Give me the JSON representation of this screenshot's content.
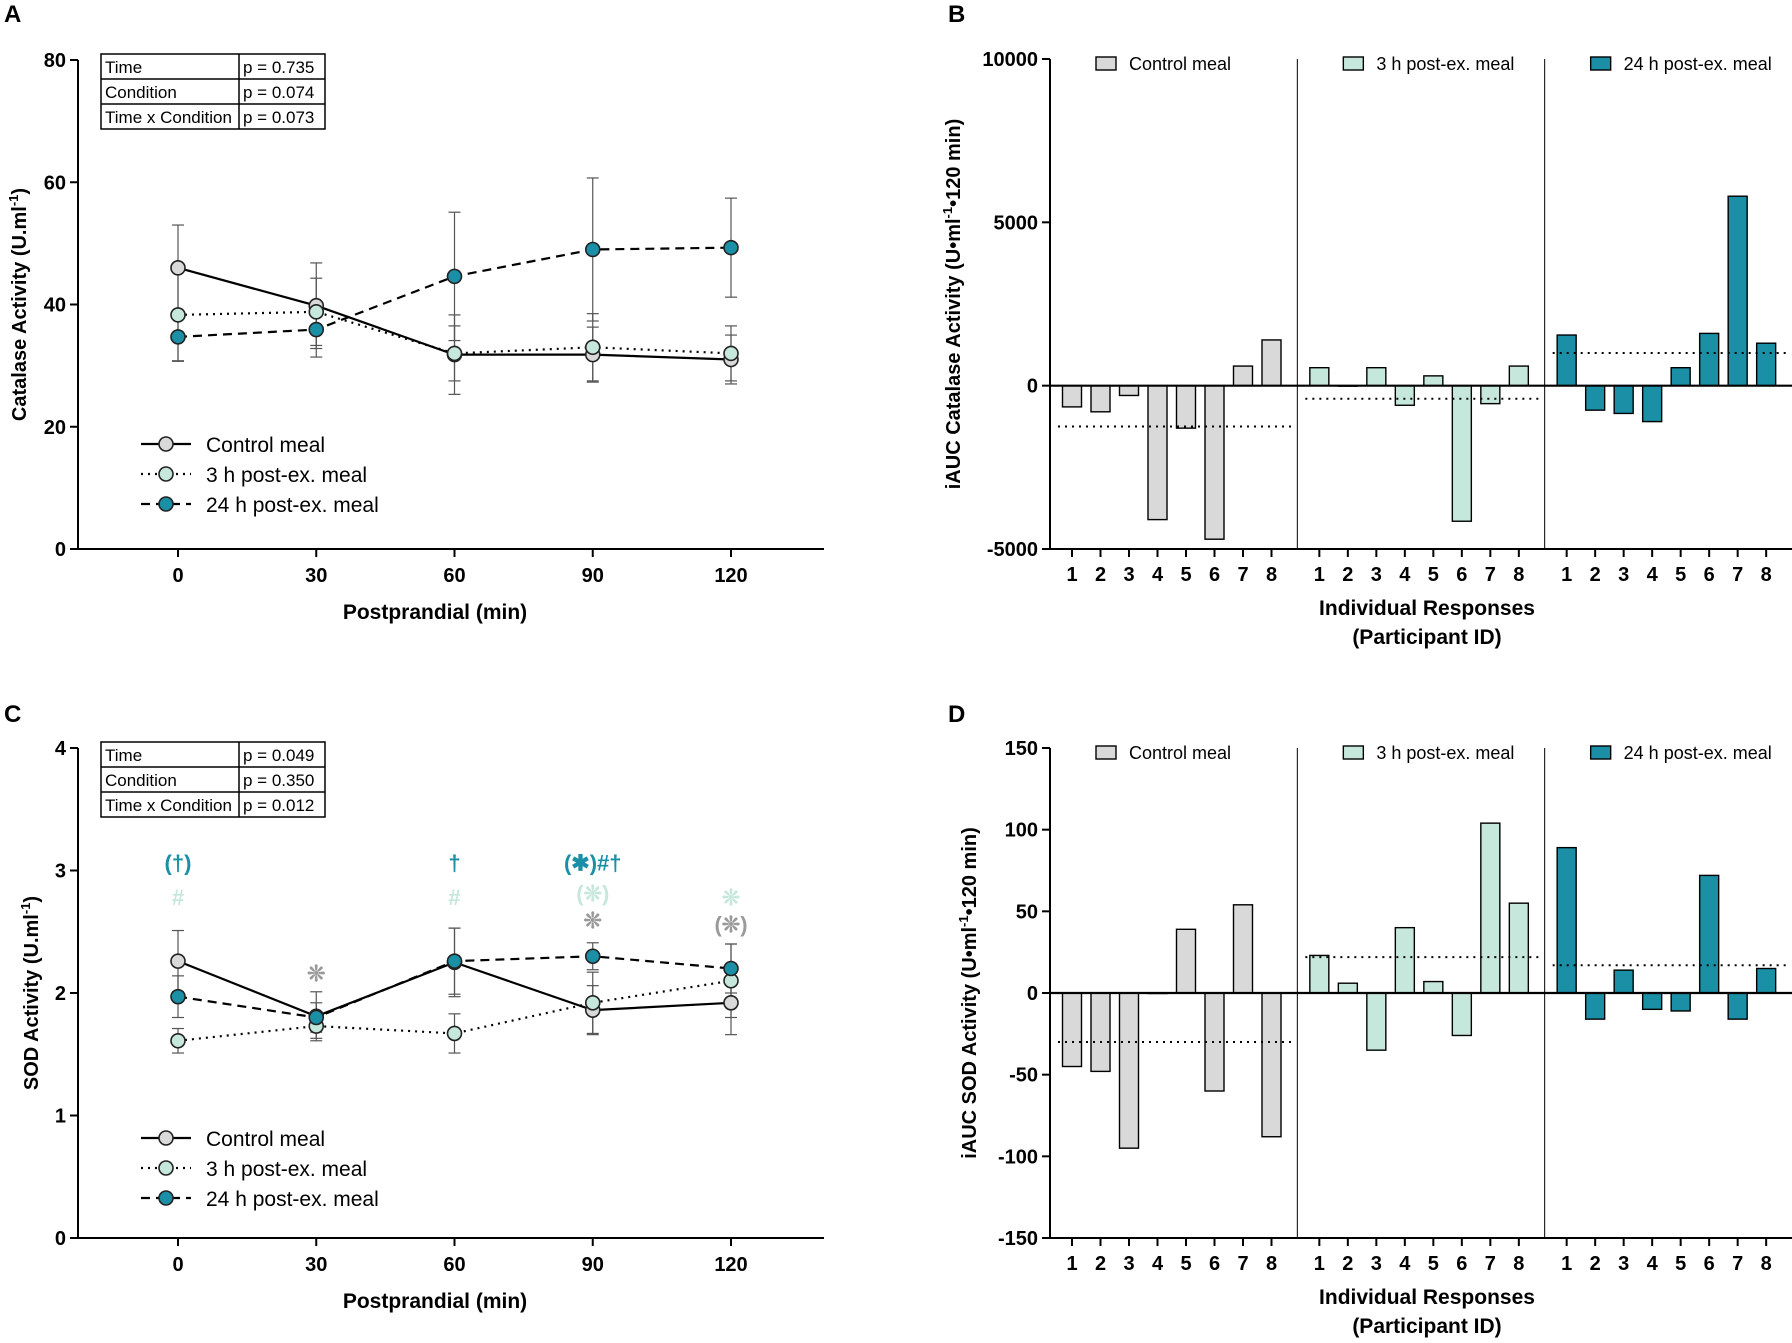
{
  "colors": {
    "control": "#d9d9d9",
    "post3": "#c6e8dc",
    "post24": "#1b8fa6",
    "control_mark": "#9a9a9a",
    "axis": "#000000"
  },
  "chart_data": [
    {
      "panel": "A",
      "type": "line",
      "title": "",
      "xlabel": "Postprandial (min)",
      "ylabel_main": "Catalase Activity (U.ml",
      "ylabel_sup": "-1",
      "ylabel_end": ")",
      "x": [
        0,
        30,
        60,
        90,
        120
      ],
      "xticks": [
        "0",
        "30",
        "60",
        "90",
        "120"
      ],
      "ylim": [
        0,
        80
      ],
      "yticks": [
        "0",
        "20",
        "40",
        "60",
        "80"
      ],
      "series": [
        {
          "name": "Control meal",
          "key": "control",
          "dash": "solid",
          "values": [
            46,
            39.8,
            31.8,
            31.8,
            31
          ],
          "sd": [
            7,
            7,
            6.5,
            4.5,
            4
          ]
        },
        {
          "name": "3 h post-ex. meal",
          "key": "post3",
          "dash": "dotted",
          "values": [
            38.3,
            38.8,
            32,
            33,
            32
          ],
          "sd": [
            7.5,
            5.5,
            4.5,
            5.5,
            4.5
          ]
        },
        {
          "name": "24 h post-ex. meal",
          "key": "post24",
          "dash": "dashed",
          "values": [
            34.7,
            35.9,
            44.6,
            49,
            49.3
          ],
          "sd": [
            4,
            4.5,
            10.5,
            11.7,
            8.1
          ]
        }
      ],
      "stats": [
        {
          "label": "Time",
          "p": "p = 0.735"
        },
        {
          "label": "Condition",
          "p": "p = 0.074"
        },
        {
          "label": "Time x Condition",
          "p": "p = 0.073"
        }
      ],
      "annotations": []
    },
    {
      "panel": "B",
      "type": "bar",
      "xlabel_line1": "Individual Responses",
      "xlabel_line2": "(Participant ID)",
      "ylabel_main": "iAUC Catalase Activity (U•ml",
      "ylabel_sup": "-1",
      "ylabel_end": "•120 min)",
      "ylim": [
        -5000,
        10000
      ],
      "yticks": [
        "-5000",
        "0",
        "5000",
        "10000"
      ],
      "categories": [
        "1",
        "2",
        "3",
        "4",
        "5",
        "6",
        "7",
        "8"
      ],
      "groups": [
        {
          "name": "Control meal",
          "key": "control",
          "values": [
            -650,
            -800,
            -300,
            -4100,
            -1300,
            -4700,
            600,
            1400
          ],
          "mean": -1250
        },
        {
          "name": "3 h post-ex. meal",
          "key": "post3",
          "values": [
            550,
            0,
            550,
            -600,
            300,
            -4150,
            -550,
            600
          ],
          "mean": -400
        },
        {
          "name": "24 h post-ex. meal",
          "key": "post24",
          "values": [
            1550,
            -750,
            -850,
            -1100,
            550,
            1600,
            5800,
            1300
          ],
          "mean": 1000
        }
      ]
    },
    {
      "panel": "C",
      "type": "line",
      "xlabel": "Postprandial (min)",
      "ylabel_main": "SOD Activity (U.ml",
      "ylabel_sup": "-1",
      "ylabel_end": ")",
      "x": [
        0,
        30,
        60,
        90,
        120
      ],
      "xticks": [
        "0",
        "30",
        "60",
        "90",
        "120"
      ],
      "ylim": [
        0,
        4
      ],
      "yticks": [
        "0",
        "1",
        "2",
        "3",
        "4"
      ],
      "series": [
        {
          "name": "Control meal",
          "key": "control",
          "dash": "solid",
          "values": [
            2.26,
            1.81,
            2.25,
            1.86,
            1.92
          ],
          "sd": [
            0.25,
            0.2,
            0.28,
            0.2,
            0.26
          ]
        },
        {
          "name": "3 h post-ex. meal",
          "key": "post3",
          "dash": "dotted",
          "values": [
            1.61,
            1.73,
            1.67,
            1.92,
            2.1
          ],
          "sd": [
            0.1,
            0.1,
            0.16,
            0.25,
            0.3
          ]
        },
        {
          "name": "24 h post-ex. meal",
          "key": "post24",
          "dash": "dashed",
          "values": [
            1.97,
            1.8,
            2.26,
            2.3,
            2.2
          ],
          "sd": [
            0.17,
            0.12,
            0.27,
            0.11,
            0.2
          ]
        }
      ],
      "stats": [
        {
          "label": "Time",
          "p": "p = 0.049"
        },
        {
          "label": "Condition",
          "p": "p = 0.350"
        },
        {
          "label": "Time x Condition",
          "p": "p = 0.012"
        }
      ],
      "annotations": [
        {
          "x": 0,
          "y": 3.0,
          "text": "(†)",
          "key": "post24"
        },
        {
          "x": 0,
          "y": 2.72,
          "text": "#",
          "key": "post3"
        },
        {
          "x": 30,
          "y": 2.1,
          "text": "❊",
          "key": "control_mark"
        },
        {
          "x": 60,
          "y": 3.0,
          "text": "†",
          "key": "post24"
        },
        {
          "x": 60,
          "y": 2.72,
          "text": "#",
          "key": "post3"
        },
        {
          "x": 90,
          "y": 3.0,
          "text": "(✱)#†",
          "key": "post24"
        },
        {
          "x": 90,
          "y": 2.75,
          "text": "(❊)",
          "key": "post3"
        },
        {
          "x": 90,
          "y": 2.53,
          "text": "❊",
          "key": "control_mark"
        },
        {
          "x": 120,
          "y": 2.72,
          "text": "❊",
          "key": "post3"
        },
        {
          "x": 120,
          "y": 2.5,
          "text": "(❊)",
          "key": "control_mark"
        }
      ]
    },
    {
      "panel": "D",
      "type": "bar",
      "xlabel_line1": "Individual Responses",
      "xlabel_line2": "(Participant ID)",
      "ylabel_main": "iAUC SOD Activity (U•ml",
      "ylabel_sup": "-1",
      "ylabel_end": "•120 min)",
      "ylim": [
        -150,
        150
      ],
      "yticks": [
        "-150",
        "-100",
        "-50",
        "0",
        "50",
        "100",
        "150"
      ],
      "categories": [
        "1",
        "2",
        "3",
        "4",
        "5",
        "6",
        "7",
        "8"
      ],
      "groups": [
        {
          "name": "Control meal",
          "key": "control",
          "values": [
            -45,
            -48,
            -95,
            0,
            39,
            -60,
            54,
            -88
          ],
          "mean": -30
        },
        {
          "name": "3 h post-ex. meal",
          "key": "post3",
          "values": [
            23,
            6,
            -35,
            40,
            7,
            -26,
            104,
            55
          ],
          "mean": 22
        },
        {
          "name": "24 h post-ex. meal",
          "key": "post24",
          "values": [
            89,
            -16,
            14,
            -10,
            -11,
            72,
            -16,
            15
          ],
          "mean": 17
        }
      ]
    }
  ]
}
